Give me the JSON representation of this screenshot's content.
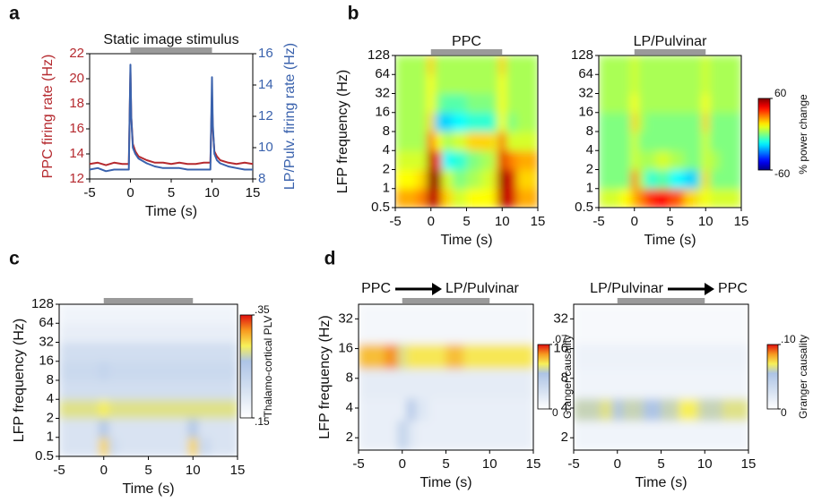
{
  "chart_data": [
    {
      "type": "line",
      "panel": "a",
      "title": "Static image stimulus",
      "xlabel": "Time (s)",
      "ylabel": "PPC firing rate (Hz)",
      "y2label": "LP/Pulv. firing rate (Hz)",
      "xlim": [
        -5,
        15
      ],
      "xticks": [
        -5,
        0,
        5,
        10,
        15
      ],
      "ylim": [
        12,
        22
      ],
      "yticks": [
        12,
        14,
        16,
        18,
        20,
        22
      ],
      "y2lim": [
        8,
        16
      ],
      "y2ticks": [
        8,
        10,
        12,
        14,
        16
      ],
      "stimulus": [
        0,
        10
      ],
      "x": [
        -5,
        -4,
        -3,
        -2,
        -1,
        -0.2,
        0,
        0.1,
        0.3,
        0.6,
        1,
        2,
        3,
        4,
        5,
        6,
        7,
        8,
        9,
        9.8,
        10,
        10.1,
        10.3,
        10.6,
        11,
        12,
        13,
        14,
        15
      ],
      "series": [
        {
          "color": "#b52a2f",
          "values": [
            13.2,
            13.3,
            13.1,
            13.3,
            13.2,
            13.2,
            20.6,
            17,
            14.8,
            14.2,
            13.8,
            13.5,
            13.3,
            13.3,
            13.2,
            13.3,
            13.2,
            13.2,
            13.3,
            13.3,
            18.7,
            16,
            14.2,
            13.8,
            13.5,
            13.3,
            13.2,
            13.3,
            13.2
          ]
        },
        {
          "color": "#3a62ad",
          "axis": "y2",
          "values": [
            8.6,
            8.7,
            8.5,
            8.6,
            8.6,
            8.6,
            15.3,
            12,
            10,
            9.6,
            9.3,
            9.0,
            8.8,
            8.7,
            8.7,
            8.7,
            8.6,
            8.6,
            8.6,
            8.6,
            14.5,
            11.5,
            9.6,
            9.2,
            9,
            8.8,
            8.7,
            8.6,
            8.6
          ]
        }
      ]
    },
    {
      "type": "heatmap",
      "panel": "b",
      "title": "PPC",
      "xlabel": "Time (s)",
      "ylabel": "LFP frequency (Hz)",
      "xlim": [
        -5,
        15
      ],
      "xticks": [
        -5,
        0,
        5,
        10,
        15
      ],
      "ylim": [
        0.5,
        128
      ],
      "log_y": true,
      "yticks": [
        0.5,
        1,
        2,
        4,
        8,
        16,
        32,
        64,
        128
      ],
      "stimulus": [
        0,
        10
      ],
      "colormap": "jet",
      "clim": [
        -60,
        60
      ],
      "xbins": [
        -5,
        -2,
        -0.5,
        0.5,
        1.5,
        3,
        5,
        7,
        9,
        9.5,
        10.5,
        12,
        15
      ],
      "ybins": [
        0.5,
        1,
        2,
        4,
        8,
        16,
        32,
        64,
        128
      ],
      "z": [
        [
          25,
          30,
          55,
          50,
          20,
          10,
          15,
          15,
          25,
          55,
          50,
          25
        ],
        [
          15,
          20,
          60,
          55,
          10,
          0,
          5,
          10,
          25,
          60,
          50,
          20
        ],
        [
          10,
          10,
          55,
          40,
          -15,
          -10,
          0,
          5,
          20,
          50,
          30,
          25
        ],
        [
          5,
          5,
          35,
          15,
          5,
          10,
          20,
          20,
          10,
          35,
          10,
          10
        ],
        [
          5,
          5,
          20,
          -20,
          -20,
          -15,
          -10,
          -10,
          0,
          15,
          0,
          5
        ],
        [
          5,
          5,
          15,
          0,
          -5,
          -5,
          0,
          0,
          5,
          15,
          5,
          5
        ],
        [
          5,
          5,
          15,
          5,
          5,
          5,
          5,
          5,
          5,
          15,
          5,
          5
        ],
        [
          5,
          5,
          20,
          5,
          5,
          5,
          5,
          5,
          5,
          20,
          5,
          5
        ]
      ]
    },
    {
      "type": "heatmap",
      "title": "LP/Pulvinar",
      "xlabel": "Time (s)",
      "xlim": [
        -5,
        15
      ],
      "xticks": [
        -5,
        0,
        5,
        10,
        15
      ],
      "ylim": [
        0.5,
        128
      ],
      "log_y": true,
      "yticks": [
        0.5,
        1,
        2,
        4,
        8,
        16,
        32,
        64,
        128
      ],
      "stimulus": [
        0,
        10
      ],
      "colormap": "jet",
      "clim": [
        -60,
        60
      ],
      "cticks": [
        -60,
        60
      ],
      "colorbar_label": "% power change",
      "xbins": [
        -5,
        -2,
        -0.5,
        0.5,
        1.5,
        3,
        5,
        7,
        9,
        9.5,
        10.5,
        12,
        15
      ],
      "ybins": [
        0.5,
        1,
        2,
        4,
        8,
        16,
        32,
        64,
        128
      ],
      "z": [
        [
          10,
          15,
          25,
          30,
          40,
          45,
          35,
          20,
          10,
          15,
          10,
          10
        ],
        [
          0,
          0,
          30,
          5,
          -10,
          -5,
          -15,
          -20,
          0,
          20,
          0,
          0
        ],
        [
          0,
          0,
          10,
          5,
          5,
          10,
          5,
          0,
          0,
          10,
          5,
          0
        ],
        [
          0,
          0,
          10,
          0,
          0,
          0,
          0,
          0,
          0,
          10,
          0,
          0
        ],
        [
          0,
          0,
          20,
          5,
          0,
          0,
          0,
          0,
          0,
          20,
          0,
          0
        ],
        [
          5,
          5,
          15,
          5,
          5,
          5,
          5,
          5,
          5,
          15,
          5,
          5
        ],
        [
          5,
          5,
          10,
          5,
          5,
          5,
          5,
          5,
          5,
          10,
          5,
          5
        ],
        [
          5,
          5,
          10,
          5,
          5,
          5,
          5,
          5,
          5,
          10,
          5,
          5
        ]
      ]
    },
    {
      "type": "heatmap",
      "panel": "c",
      "xlabel": "Time (s)",
      "ylabel": "LFP frequency (Hz)",
      "xlim": [
        -5,
        15
      ],
      "xticks": [
        -5,
        0,
        5,
        10,
        15
      ],
      "ylim": [
        0.5,
        128
      ],
      "log_y": true,
      "yticks": [
        0.5,
        1,
        2,
        4,
        8,
        16,
        32,
        64,
        128
      ],
      "stimulus": [
        0,
        10
      ],
      "colormap": "pale",
      "clim": [
        0.15,
        0.35
      ],
      "cticks": [
        {
          "value": 0.15,
          "label": ".15"
        },
        {
          "value": 0.35,
          "label": ".35"
        }
      ],
      "colorbar_label": "Thalamo-cortical PLV",
      "xbins": [
        -5,
        -2,
        -0.5,
        0.5,
        1.5,
        3,
        5,
        7,
        9,
        9.5,
        10.5,
        12,
        15
      ],
      "ybins": [
        0.5,
        1,
        2,
        4,
        8,
        16,
        32,
        64,
        128
      ],
      "z": [
        [
          0.2,
          0.2,
          0.3,
          0.22,
          0.2,
          0.2,
          0.2,
          0.2,
          0.2,
          0.3,
          0.22,
          0.2
        ],
        [
          0.2,
          0.2,
          0.26,
          0.2,
          0.2,
          0.2,
          0.2,
          0.2,
          0.2,
          0.26,
          0.2,
          0.2
        ],
        [
          0.28,
          0.28,
          0.29,
          0.28,
          0.28,
          0.28,
          0.28,
          0.28,
          0.28,
          0.28,
          0.28,
          0.28
        ],
        [
          0.21,
          0.21,
          0.21,
          0.21,
          0.21,
          0.21,
          0.21,
          0.21,
          0.21,
          0.21,
          0.21,
          0.21
        ],
        [
          0.22,
          0.22,
          0.23,
          0.22,
          0.22,
          0.22,
          0.22,
          0.22,
          0.22,
          0.22,
          0.22,
          0.22
        ],
        [
          0.21,
          0.21,
          0.21,
          0.21,
          0.21,
          0.21,
          0.21,
          0.21,
          0.21,
          0.21,
          0.21,
          0.21
        ],
        [
          0.18,
          0.18,
          0.18,
          0.18,
          0.18,
          0.18,
          0.18,
          0.18,
          0.18,
          0.18,
          0.18,
          0.18
        ],
        [
          0.17,
          0.17,
          0.17,
          0.17,
          0.17,
          0.17,
          0.17,
          0.17,
          0.17,
          0.17,
          0.17,
          0.17
        ]
      ]
    },
    {
      "type": "heatmap",
      "panel": "d",
      "title": [
        "PPC",
        "LP/Pulvinar"
      ],
      "xlabel": "Time (s)",
      "ylabel": "LFP frequency (Hz)",
      "xlim": [
        -5,
        15
      ],
      "xticks": [
        -5,
        0,
        5,
        10,
        15
      ],
      "ylim": [
        1.5,
        45
      ],
      "log_y": true,
      "yticks": [
        2,
        4,
        8,
        16,
        32
      ],
      "stimulus": [
        0,
        10
      ],
      "colormap": "pale",
      "clim": [
        0,
        0.07
      ],
      "cticks": [
        0,
        {
          "value": 0.07,
          "label": ".07"
        }
      ],
      "colorbar_label": "Granger causality",
      "xbins": [
        -5,
        -2,
        -0.5,
        0.5,
        1.5,
        3,
        5,
        7,
        9,
        9.5,
        10.5,
        12,
        15
      ],
      "ybins": [
        1.5,
        3,
        5,
        10,
        18,
        45
      ],
      "z": [
        [
          0.01,
          0.01,
          0.03,
          0.015,
          0.01,
          0.01,
          0.01,
          0.01,
          0.01,
          0.01,
          0.01,
          0.01
        ],
        [
          0.01,
          0.01,
          0.01,
          0.035,
          0.015,
          0.01,
          0.01,
          0.01,
          0.01,
          0.01,
          0.01,
          0.01
        ],
        [
          0.012,
          0.012,
          0.012,
          0.012,
          0.012,
          0.012,
          0.012,
          0.012,
          0.012,
          0.012,
          0.012,
          0.012
        ],
        [
          0.055,
          0.06,
          0.045,
          0.05,
          0.05,
          0.05,
          0.055,
          0.05,
          0.05,
          0.05,
          0.05,
          0.05
        ],
        [
          0.005,
          0.005,
          0.005,
          0.005,
          0.005,
          0.005,
          0.005,
          0.005,
          0.005,
          0.005,
          0.005,
          0.005
        ]
      ]
    },
    {
      "type": "heatmap",
      "title": [
        "LP/Pulvinar",
        "PPC"
      ],
      "xlabel": "Time (s)",
      "xlim": [
        -5,
        15
      ],
      "xticks": [
        -5,
        0,
        5,
        10,
        15
      ],
      "ylim": [
        1.5,
        45
      ],
      "log_y": true,
      "yticks": [
        2,
        4,
        8,
        16,
        32
      ],
      "stimulus": [
        0,
        10
      ],
      "colormap": "pale",
      "clim": [
        0,
        0.1
      ],
      "cticks": [
        0,
        {
          "value": 0.1,
          "label": ".10"
        }
      ],
      "colorbar_label": "Granger causality",
      "xbins": [
        -5,
        -2,
        -0.5,
        0.5,
        1.5,
        3,
        5,
        7,
        9,
        9.5,
        10.5,
        12,
        15
      ],
      "ybins": [
        1.5,
        3,
        5,
        10,
        18,
        45
      ],
      "z": [
        [
          0.01,
          0.01,
          0.01,
          0.01,
          0.01,
          0.01,
          0.01,
          0.01,
          0.01,
          0.01,
          0.01,
          0.01
        ],
        [
          0.06,
          0.065,
          0.055,
          0.06,
          0.06,
          0.055,
          0.06,
          0.07,
          0.065,
          0.06,
          0.06,
          0.065
        ],
        [
          0.01,
          0.01,
          0.01,
          0.01,
          0.01,
          0.01,
          0.01,
          0.01,
          0.01,
          0.01,
          0.01,
          0.01
        ],
        [
          0.012,
          0.012,
          0.012,
          0.012,
          0.012,
          0.012,
          0.012,
          0.012,
          0.012,
          0.012,
          0.012,
          0.012
        ],
        [
          0.005,
          0.005,
          0.005,
          0.005,
          0.005,
          0.005,
          0.005,
          0.005,
          0.005,
          0.005,
          0.005,
          0.005
        ]
      ]
    }
  ]
}
